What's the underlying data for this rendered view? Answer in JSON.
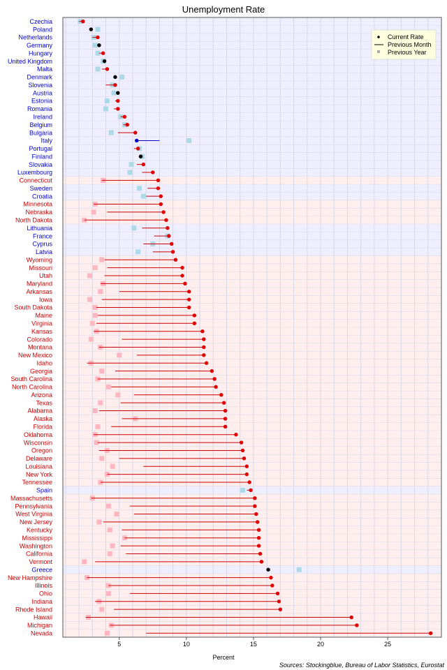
{
  "chart_data": {
    "type": "scatter",
    "title": "Unemployment Rate",
    "xlabel": "Percent",
    "ylabel": "",
    "xlim": [
      0.8,
      29.0
    ],
    "xticks": [
      5,
      10,
      15,
      20,
      25
    ],
    "grid": true,
    "legend_position": "top-right",
    "legend": [
      "Current Rate",
      "Previous Month",
      "Previous Year"
    ],
    "source": "Sources: Stockingblue, Bureau of Labor Statistics, Eurostat",
    "colors": {
      "us_current": "#e00000",
      "us_line": "#cc0000",
      "us_prev_year": "#ffb6c1",
      "eu_label": "#0000cc",
      "us_label": "#cc0000",
      "eu_current_up": "#0000cc",
      "eu_current_flat": "#000000",
      "eu_prev_year": "#add8e6",
      "eu_band": "#eeeeff",
      "us_band": "#ffeeee"
    },
    "series": [
      {
        "name": "Czechia",
        "group": "eu",
        "current": 2.3,
        "prev_month": 2.0,
        "prev_year": 2.1
      },
      {
        "name": "Poland",
        "group": "eu",
        "current": 2.9,
        "prev_month": 2.9,
        "prev_year": 3.4
      },
      {
        "name": "Netherlands",
        "group": "eu",
        "current": 3.4,
        "prev_month": 3.0,
        "prev_year": 3.1
      },
      {
        "name": "Germany",
        "group": "eu",
        "current": 3.5,
        "prev_month": 3.5,
        "prev_year": 3.2
      },
      {
        "name": "Hungary",
        "group": "eu",
        "current": 3.8,
        "prev_month": 3.5,
        "prev_year": 3.4
      },
      {
        "name": "United Kingdom",
        "group": "eu",
        "current": 3.9,
        "prev_month": 3.9,
        "prev_year": 3.8
      },
      {
        "name": "Malta",
        "group": "eu",
        "current": 4.1,
        "prev_month": 3.7,
        "prev_year": 3.4
      },
      {
        "name": "Denmark",
        "group": "eu",
        "current": 4.7,
        "prev_month": 4.7,
        "prev_year": 5.2
      },
      {
        "name": "Slovenia",
        "group": "eu",
        "current": 4.7,
        "prev_month": 4.0,
        "prev_year": 4.5
      },
      {
        "name": "Austria",
        "group": "eu",
        "current": 4.9,
        "prev_month": 4.9,
        "prev_year": 4.6
      },
      {
        "name": "Estonia",
        "group": "eu",
        "current": 4.9,
        "prev_month": 4.7,
        "prev_year": 4.1
      },
      {
        "name": "Romania",
        "group": "eu",
        "current": 4.9,
        "prev_month": 4.6,
        "prev_year": 4.0
      },
      {
        "name": "Ireland",
        "group": "eu",
        "current": 5.4,
        "prev_month": 5.1,
        "prev_year": 5.1
      },
      {
        "name": "Belgium",
        "group": "eu",
        "current": 5.6,
        "prev_month": 5.3,
        "prev_year": 5.4
      },
      {
        "name": "Bulgaria",
        "group": "eu",
        "current": 6.2,
        "prev_month": 4.9,
        "prev_year": 4.4
      },
      {
        "name": "Italy",
        "group": "eu",
        "current": 6.3,
        "prev_month": 8.0,
        "prev_year": 10.2
      },
      {
        "name": "Portugal",
        "group": "eu",
        "current": 6.4,
        "prev_month": 6.1,
        "prev_year": 6.5
      },
      {
        "name": "Finland",
        "group": "eu",
        "current": 6.6,
        "prev_month": 6.6,
        "prev_year": 6.7
      },
      {
        "name": "Slovakia",
        "group": "eu",
        "current": 6.8,
        "prev_month": 6.3,
        "prev_year": 5.9
      },
      {
        "name": "Luxembourg",
        "group": "eu",
        "current": 7.5,
        "prev_month": 6.7,
        "prev_year": 5.8
      },
      {
        "name": "Connecticut",
        "group": "us",
        "current": 7.9,
        "prev_month": 3.7,
        "prev_year": 3.8
      },
      {
        "name": "Sweden",
        "group": "eu",
        "current": 7.9,
        "prev_month": 7.1,
        "prev_year": 6.5
      },
      {
        "name": "Croatia",
        "group": "eu",
        "current": 8.1,
        "prev_month": 7.0,
        "prev_year": 6.8
      },
      {
        "name": "Minnesota",
        "group": "us",
        "current": 8.1,
        "prev_month": 3.1,
        "prev_year": 3.2
      },
      {
        "name": "Nebraska",
        "group": "us",
        "current": 8.3,
        "prev_month": 4.1,
        "prev_year": 3.1
      },
      {
        "name": "North Dakota",
        "group": "us",
        "current": 8.5,
        "prev_month": 2.4,
        "prev_year": 2.4
      },
      {
        "name": "Lithuania",
        "group": "eu",
        "current": 8.6,
        "prev_month": 6.7,
        "prev_year": 6.1
      },
      {
        "name": "France",
        "group": "eu",
        "current": 8.7,
        "prev_month": 7.6,
        "prev_year": 8.6
      },
      {
        "name": "Cyprus",
        "group": "eu",
        "current": 8.9,
        "prev_month": 6.8,
        "prev_year": 7.5
      },
      {
        "name": "Latvia",
        "group": "eu",
        "current": 9.0,
        "prev_month": 7.5,
        "prev_year": 6.4
      },
      {
        "name": "Wyoming",
        "group": "us",
        "current": 9.2,
        "prev_month": 3.9,
        "prev_year": 3.7
      },
      {
        "name": "Missouri",
        "group": "us",
        "current": 9.7,
        "prev_month": 4.1,
        "prev_year": 3.2
      },
      {
        "name": "Utah",
        "group": "us",
        "current": 9.7,
        "prev_month": 3.9,
        "prev_year": 2.8
      },
      {
        "name": "Maryland",
        "group": "us",
        "current": 9.9,
        "prev_month": 3.6,
        "prev_year": 3.8
      },
      {
        "name": "Arkansas",
        "group": "us",
        "current": 10.2,
        "prev_month": 5.0,
        "prev_year": 3.6
      },
      {
        "name": "Iowa",
        "group": "us",
        "current": 10.2,
        "prev_month": 3.7,
        "prev_year": 2.8
      },
      {
        "name": "South Dakota",
        "group": "us",
        "current": 10.2,
        "prev_month": 3.3,
        "prev_year": 3.2
      },
      {
        "name": "Maine",
        "group": "us",
        "current": 10.6,
        "prev_month": 3.4,
        "prev_year": 3.2
      },
      {
        "name": "Virginia",
        "group": "us",
        "current": 10.6,
        "prev_month": 3.3,
        "prev_year": 3.0
      },
      {
        "name": "Kansas",
        "group": "us",
        "current": 11.2,
        "prev_month": 3.1,
        "prev_year": 3.3
      },
      {
        "name": "Colorado",
        "group": "us",
        "current": 11.3,
        "prev_month": 5.2,
        "prev_year": 2.9
      },
      {
        "name": "Montana",
        "group": "us",
        "current": 11.3,
        "prev_month": 3.5,
        "prev_year": 3.6
      },
      {
        "name": "New Mexico",
        "group": "us",
        "current": 11.3,
        "prev_month": 6.3,
        "prev_year": 5.0
      },
      {
        "name": "Idaho",
        "group": "us",
        "current": 11.5,
        "prev_month": 2.6,
        "prev_year": 2.9
      },
      {
        "name": "Georgia",
        "group": "us",
        "current": 11.9,
        "prev_month": 4.7,
        "prev_year": 3.7
      },
      {
        "name": "South Carolina",
        "group": "us",
        "current": 12.1,
        "prev_month": 3.4,
        "prev_year": 3.4
      },
      {
        "name": "North Carolina",
        "group": "us",
        "current": 12.2,
        "prev_month": 4.4,
        "prev_year": 4.2
      },
      {
        "name": "Arizona",
        "group": "us",
        "current": 12.6,
        "prev_month": 6.1,
        "prev_year": 4.9
      },
      {
        "name": "Texas",
        "group": "us",
        "current": 12.8,
        "prev_month": 5.1,
        "prev_year": 3.6
      },
      {
        "name": "Alabama",
        "group": "us",
        "current": 12.9,
        "prev_month": 3.5,
        "prev_year": 3.2
      },
      {
        "name": "Alaska",
        "group": "us",
        "current": 12.9,
        "prev_month": 5.2,
        "prev_year": 6.2
      },
      {
        "name": "Florida",
        "group": "us",
        "current": 12.9,
        "prev_month": 4.4,
        "prev_year": 3.4
      },
      {
        "name": "Oklahoma",
        "group": "us",
        "current": 13.7,
        "prev_month": 3.1,
        "prev_year": 3.2
      },
      {
        "name": "Wisconsin",
        "group": "us",
        "current": 14.1,
        "prev_month": 3.4,
        "prev_year": 3.3
      },
      {
        "name": "Oregon",
        "group": "us",
        "current": 14.2,
        "prev_month": 3.5,
        "prev_year": 4.1
      },
      {
        "name": "Delaware",
        "group": "us",
        "current": 14.3,
        "prev_month": 5.0,
        "prev_year": 3.7
      },
      {
        "name": "Louisiana",
        "group": "us",
        "current": 14.5,
        "prev_month": 6.8,
        "prev_year": 4.5
      },
      {
        "name": "New York",
        "group": "us",
        "current": 14.5,
        "prev_month": 4.1,
        "prev_year": 4.1
      },
      {
        "name": "Tennessee",
        "group": "us",
        "current": 14.7,
        "prev_month": 3.6,
        "prev_year": 3.6
      },
      {
        "name": "Spain",
        "group": "eu",
        "current": 14.8,
        "prev_month": 14.5,
        "prev_year": 14.2
      },
      {
        "name": "Massachusetts",
        "group": "us",
        "current": 15.1,
        "prev_month": 2.9,
        "prev_year": 3.0
      },
      {
        "name": "Pennsylvania",
        "group": "us",
        "current": 15.1,
        "prev_month": 5.8,
        "prev_year": 4.2
      },
      {
        "name": "West Virginia",
        "group": "us",
        "current": 15.2,
        "prev_month": 6.1,
        "prev_year": 4.8
      },
      {
        "name": "New Jersey",
        "group": "us",
        "current": 15.3,
        "prev_month": 3.8,
        "prev_year": 3.5
      },
      {
        "name": "Kentucky",
        "group": "us",
        "current": 15.4,
        "prev_month": 5.2,
        "prev_year": 4.3
      },
      {
        "name": "Mississippi",
        "group": "us",
        "current": 15.4,
        "prev_month": 5.4,
        "prev_year": 5.4
      },
      {
        "name": "Washington",
        "group": "us",
        "current": 15.4,
        "prev_month": 5.1,
        "prev_year": 4.5
      },
      {
        "name": "California",
        "group": "us",
        "current": 15.5,
        "prev_month": 5.5,
        "prev_year": 4.3
      },
      {
        "name": "Vermont",
        "group": "us",
        "current": 15.6,
        "prev_month": 3.2,
        "prev_year": 2.4
      },
      {
        "name": "Greece",
        "group": "eu",
        "current": 16.1,
        "prev_month": 16.1,
        "prev_year": 18.4
      },
      {
        "name": "New Hampshire",
        "group": "us",
        "current": 16.3,
        "prev_month": 2.6,
        "prev_year": 2.6
      },
      {
        "name": "Illinois",
        "group": "us",
        "current": 16.4,
        "prev_month": 4.2,
        "prev_year": 4.2
      },
      {
        "name": "Ohio",
        "group": "us",
        "current": 16.8,
        "prev_month": 5.8,
        "prev_year": 4.2
      },
      {
        "name": "Indiana",
        "group": "us",
        "current": 16.9,
        "prev_month": 3.2,
        "prev_year": 3.5
      },
      {
        "name": "Rhode Island",
        "group": "us",
        "current": 17.0,
        "prev_month": 4.6,
        "prev_year": 3.7
      },
      {
        "name": "Hawaii",
        "group": "us",
        "current": 22.3,
        "prev_month": 2.5,
        "prev_year": 2.7
      },
      {
        "name": "Michigan",
        "group": "us",
        "current": 22.7,
        "prev_month": 4.3,
        "prev_year": 4.4
      },
      {
        "name": "Nevada",
        "group": "us",
        "current": 28.2,
        "prev_month": 7.0,
        "prev_year": 4.1
      }
    ]
  }
}
